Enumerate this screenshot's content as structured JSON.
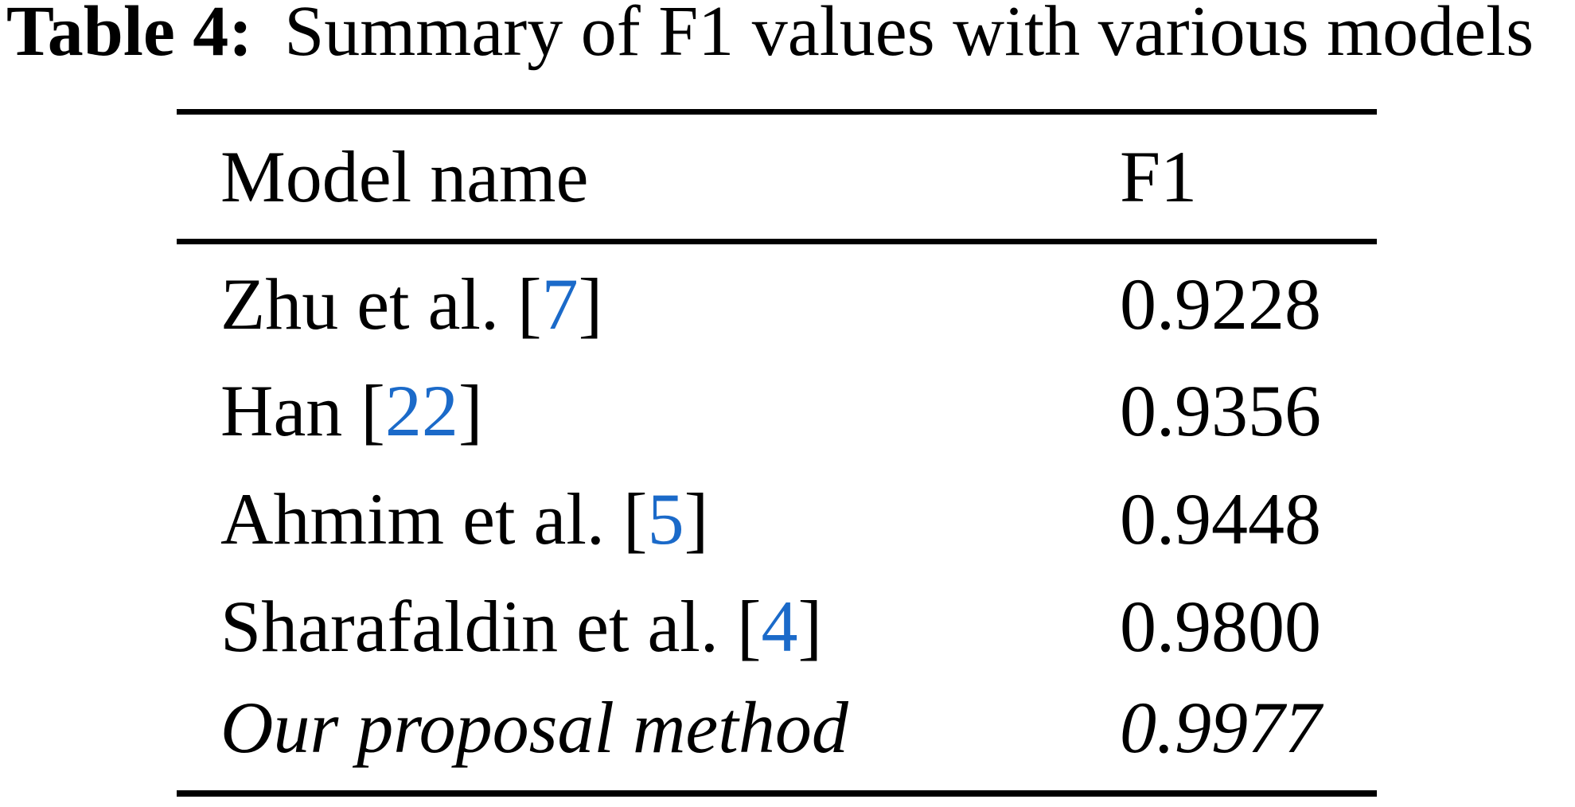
{
  "caption": {
    "label": "Table 4:",
    "text": "Summary of F1 values with various models"
  },
  "table": {
    "headers": {
      "model": "Model name",
      "f1": "F1"
    },
    "rows": [
      {
        "name": "Zhu et al. ",
        "bracket_open": "[",
        "cite": "7",
        "bracket_close": "]",
        "f1": "0.9228"
      },
      {
        "name": "Han ",
        "bracket_open": "[",
        "cite": "22",
        "bracket_close": "]",
        "f1": "0.9356"
      },
      {
        "name": "Ahmim et al. ",
        "bracket_open": "[",
        "cite": "5",
        "bracket_close": "]",
        "f1": "0.9448"
      },
      {
        "name": "Sharafaldin et al. ",
        "bracket_open": "[",
        "cite": "4",
        "bracket_close": "]",
        "f1": "0.9800"
      },
      {
        "name": "Our proposal method",
        "bracket_open": "",
        "cite": "",
        "bracket_close": "",
        "f1": "0.9977"
      }
    ]
  },
  "colors": {
    "citation_link": "#1b6ac9",
    "text": "#000000",
    "rule": "#000000",
    "background": "#ffffff"
  },
  "chart_data": {
    "type": "table",
    "title": "Table 4: Summary of F1 values with various models",
    "columns": [
      "Model name",
      "F1"
    ],
    "rows": [
      [
        "Zhu et al. [7]",
        0.9228
      ],
      [
        "Han [22]",
        0.9356
      ],
      [
        "Ahmim et al. [5]",
        0.9448
      ],
      [
        "Sharafaldin et al. [4]",
        0.98
      ],
      [
        "Our proposal method",
        0.9977
      ]
    ]
  }
}
